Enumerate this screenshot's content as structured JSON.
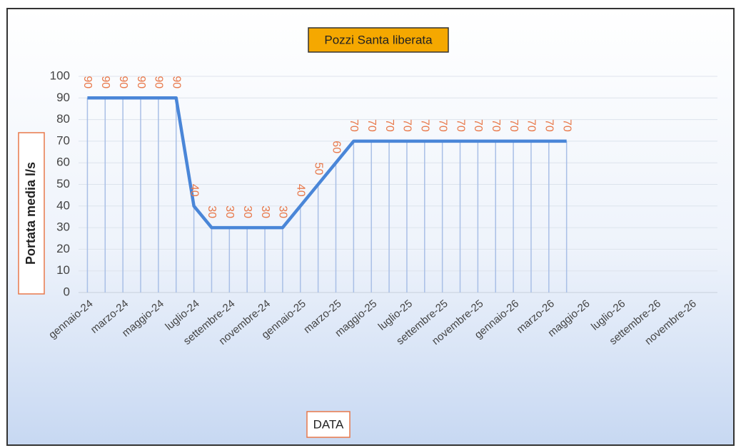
{
  "chart_data": {
    "type": "line",
    "title": "Pozzi Santa liberata",
    "x_label": "DATA",
    "y_label": "Portata media l/s",
    "categories": [
      "gennaio-24",
      null,
      "marzo-24",
      null,
      "maggio-24",
      null,
      "luglio-24",
      null,
      "settembre-24",
      null,
      "novembre-24",
      null,
      "gennaio-25",
      null,
      "marzo-25",
      null,
      "maggio-25",
      null,
      "luglio-25",
      null,
      "settembre-25",
      null,
      "novembre-25",
      null,
      "gennaio-26",
      null,
      "marzo-26",
      null,
      "maggio-26",
      null,
      "luglio-26",
      null,
      "settembre-26",
      null,
      "novembre-26",
      null
    ],
    "series": [
      {
        "name": "Portata media l/s",
        "color": "#4a86d8",
        "values": [
          90,
          90,
          90,
          90,
          90,
          90,
          40,
          30,
          30,
          30,
          30,
          30,
          40,
          50,
          60,
          70,
          70,
          70,
          70,
          70,
          70,
          70,
          70,
          70,
          70,
          70,
          70,
          70,
          null,
          null,
          null,
          null,
          null,
          null,
          null,
          null
        ]
      }
    ],
    "ylim": [
      0,
      100
    ],
    "yticks": [
      0,
      10,
      20,
      30,
      40,
      50,
      60,
      70,
      80,
      90,
      100
    ],
    "grid": true,
    "data_labels": true,
    "drop_lines": true
  }
}
